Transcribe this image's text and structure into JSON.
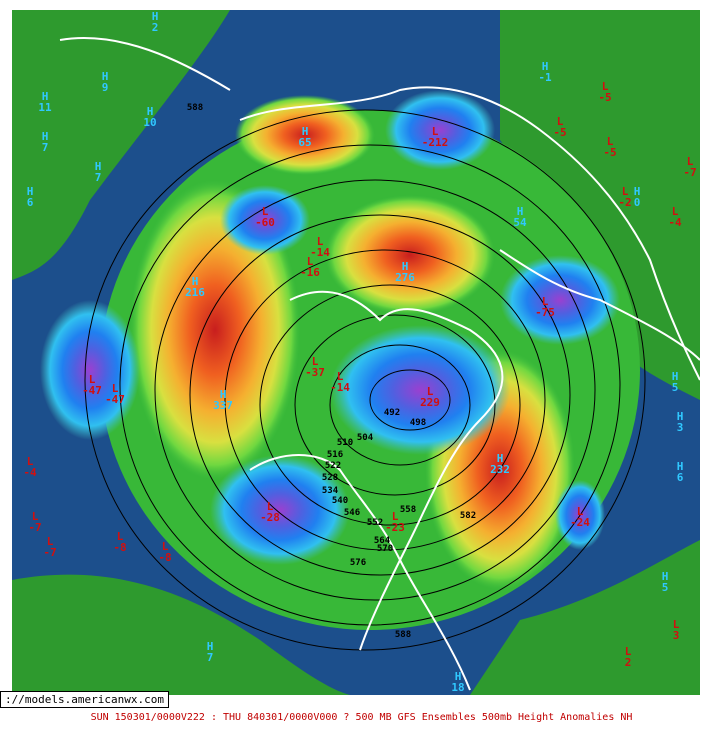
{
  "watermark": "://models.americanwx.com",
  "caption": "SUN 150301/0000V222 : THU 840301/0000V000  ? 500 MB GFS Ensembles 500mb Height Anomalies NH",
  "centers": [
    {
      "kind": "H",
      "value": "2"
    },
    {
      "kind": "H",
      "value": "11"
    },
    {
      "kind": "H",
      "value": "9"
    },
    {
      "kind": "H",
      "value": "10"
    },
    {
      "kind": "H",
      "value": "7"
    },
    {
      "kind": "H",
      "value": "7"
    },
    {
      "kind": "H",
      "value": "6"
    },
    {
      "kind": "L",
      "value": "-47"
    },
    {
      "kind": "L",
      "value": "-47"
    },
    {
      "kind": "H",
      "value": "337"
    },
    {
      "kind": "H",
      "value": "216"
    },
    {
      "kind": "L",
      "value": "-60"
    },
    {
      "kind": "L",
      "value": "-16"
    },
    {
      "kind": "L",
      "value": "-14"
    },
    {
      "kind": "H",
      "value": "276"
    },
    {
      "kind": "L",
      "value": "-212"
    },
    {
      "kind": "H",
      "value": "-1"
    },
    {
      "kind": "L",
      "value": "-5"
    },
    {
      "kind": "L",
      "value": "-5"
    },
    {
      "kind": "L",
      "value": "-5"
    },
    {
      "kind": "L",
      "value": "-7"
    },
    {
      "kind": "L",
      "value": "-2"
    },
    {
      "kind": "H",
      "value": "0"
    },
    {
      "kind": "L",
      "value": "-4"
    },
    {
      "kind": "H",
      "value": "54"
    },
    {
      "kind": "L",
      "value": "-75"
    },
    {
      "kind": "L",
      "value": "-37"
    },
    {
      "kind": "L",
      "value": "-14"
    },
    {
      "kind": "L",
      "value": "229"
    },
    {
      "kind": "H",
      "value": "232"
    },
    {
      "kind": "L",
      "value": "-24"
    },
    {
      "kind": "L",
      "value": "-28"
    },
    {
      "kind": "L",
      "value": "-23"
    },
    {
      "kind": "H",
      "value": "6"
    },
    {
      "kind": "H",
      "value": "5"
    },
    {
      "kind": "L",
      "value": "-4"
    },
    {
      "kind": "L",
      "value": "-7"
    },
    {
      "kind": "L",
      "value": "-7"
    },
    {
      "kind": "L",
      "value": "-8"
    },
    {
      "kind": "L",
      "value": "-8"
    },
    {
      "kind": "H",
      "value": "7"
    },
    {
      "kind": "H",
      "value": "18"
    },
    {
      "kind": "L",
      "value": "2"
    },
    {
      "kind": "L",
      "value": "3"
    },
    {
      "kind": "H",
      "value": "5"
    },
    {
      "kind": "H",
      "value": "3"
    },
    {
      "kind": "H",
      "value": "65"
    }
  ],
  "contour_labels": [
    "588",
    "492",
    "498",
    "504",
    "510",
    "516",
    "522",
    "528",
    "534",
    "540",
    "546",
    "552",
    "558",
    "564",
    "570",
    "576",
    "582",
    "588"
  ]
}
